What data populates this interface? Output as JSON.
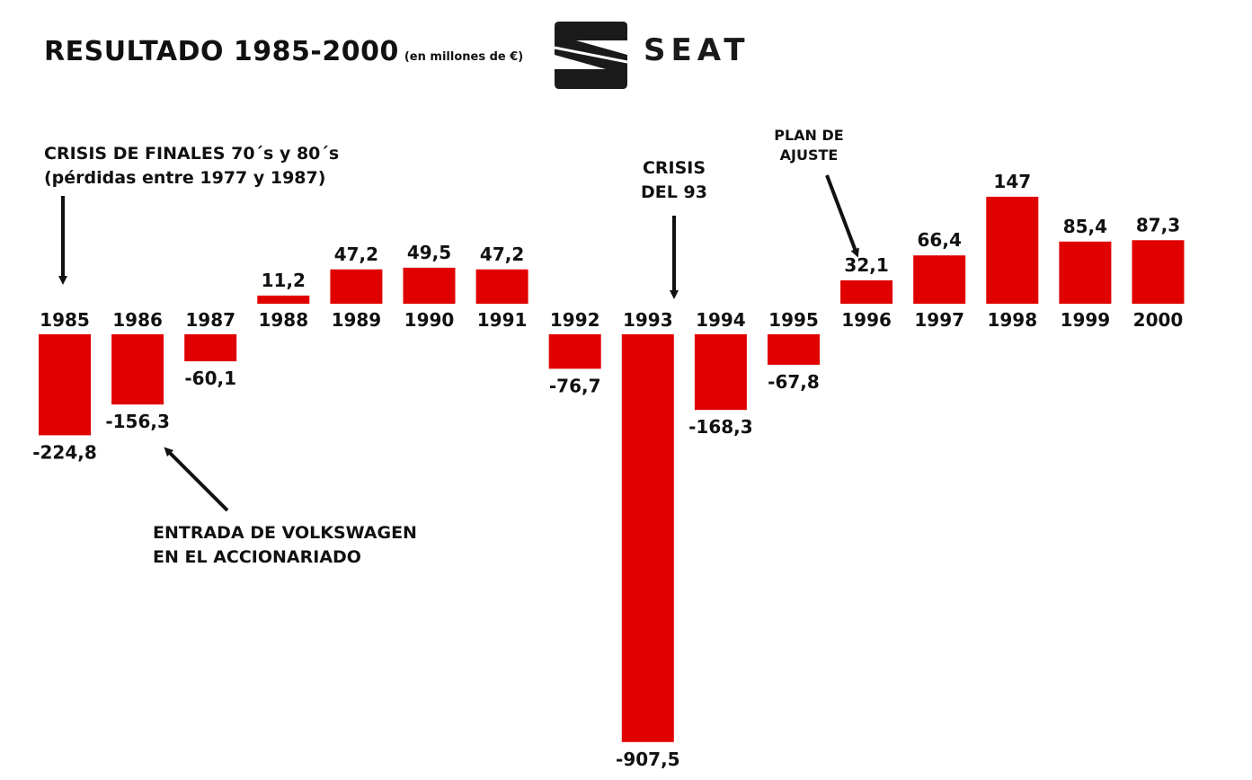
{
  "title": "RESULTADO 1985-2000",
  "subtitle": "(en millones de €)",
  "logo": {
    "text": "SEAT",
    "icon": "seat-s-logo-icon",
    "color": "#1a1a1a"
  },
  "colors": {
    "bar": "#e00000",
    "text": "#111111",
    "background": "#ffffff"
  },
  "annotations": {
    "crisis_70_80": [
      "CRISIS DE FINALES 70´s y 80´s",
      "(pérdidas entre 1977 y 1987)"
    ],
    "volkswagen": [
      "ENTRADA DE VOLKSWAGEN",
      "EN EL ACCIONARIADO"
    ],
    "crisis_93": [
      "CRISIS",
      "DEL 93"
    ],
    "plan_ajuste": [
      "PLAN DE",
      "AJUSTE"
    ]
  },
  "chart_data": {
    "type": "bar",
    "title": "RESULTADO 1985-2000",
    "subtitle": "(en millones de €)",
    "categories": [
      "1985",
      "1986",
      "1987",
      "1988",
      "1989",
      "1990",
      "1991",
      "1992",
      "1993",
      "1994",
      "1995",
      "1996",
      "1997",
      "1998",
      "1999",
      "2000"
    ],
    "values": [
      -224.8,
      -156.3,
      -60.1,
      11.2,
      47.2,
      49.5,
      47.2,
      -76.7,
      -907.5,
      -168.3,
      -67.8,
      32.1,
      66.4,
      147,
      85.4,
      87.3
    ],
    "value_labels": [
      "-224,8",
      "-156,3",
      "-60,1",
      "11,2",
      "47,2",
      "49,5",
      "47,2",
      "-76,7",
      "-907,5",
      "-168,3",
      "-67,8",
      "32,1",
      "66,4",
      "147",
      "85,4",
      "87,3"
    ],
    "xlabel": "",
    "ylabel": "",
    "grid": false,
    "legend": "none"
  }
}
